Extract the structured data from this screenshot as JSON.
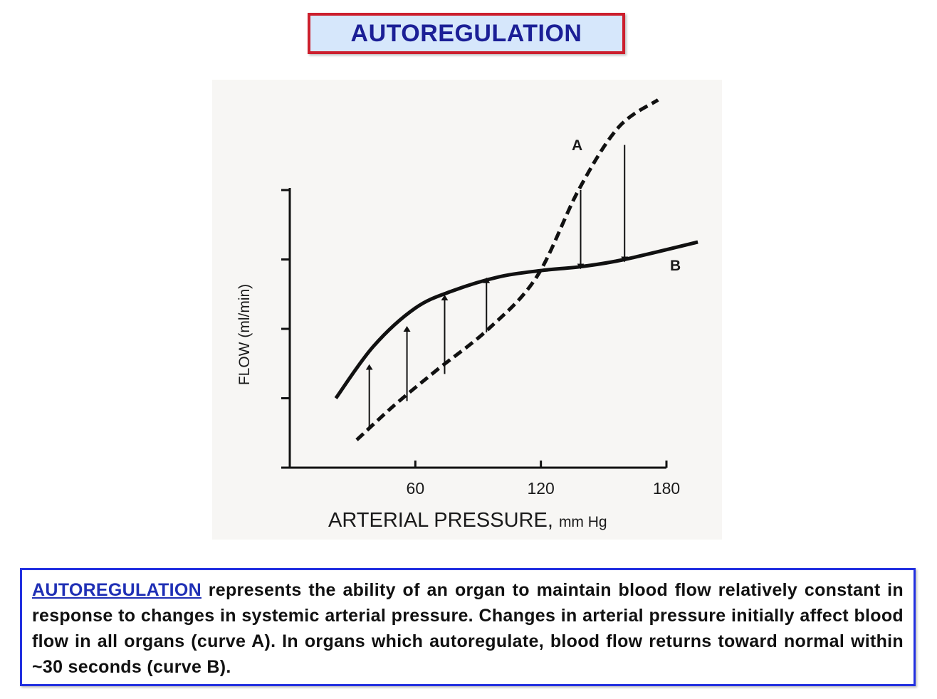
{
  "title": "AUTOREGULATION",
  "chart_data": {
    "type": "line",
    "xlabel_main": "ARTERIAL  PRESSURE,",
    "xlabel_unit": "mm Hg",
    "ylabel": "FLOW (ml/min)",
    "xlim": [
      0,
      180
    ],
    "x_ticks": [
      60,
      120,
      180
    ],
    "x_tick_labels": [
      "60",
      "120",
      "180"
    ],
    "y_tick_count": 4,
    "grid": false,
    "series": [
      {
        "name": "A",
        "style": "dashed",
        "x": [
          32,
          50,
          70,
          95,
          118,
          138,
          157,
          176
        ],
        "y": [
          0.4,
          0.9,
          1.4,
          2.0,
          2.75,
          4.0,
          4.9,
          5.3
        ]
      },
      {
        "name": "B",
        "style": "solid",
        "x": [
          22,
          40,
          60,
          78,
          100,
          120,
          140,
          160,
          195
        ],
        "y": [
          1.0,
          1.75,
          2.3,
          2.55,
          2.75,
          2.84,
          2.9,
          3.0,
          3.25
        ]
      }
    ],
    "arrows": [
      {
        "x": 38,
        "from": 0.55,
        "to": 1.45
      },
      {
        "x": 56,
        "from": 0.96,
        "to": 2.0
      },
      {
        "x": 74,
        "from": 1.35,
        "to": 2.45
      },
      {
        "x": 94,
        "from": 1.95,
        "to": 2.7
      },
      {
        "x": 139,
        "from": 4.0,
        "to": 2.9
      },
      {
        "x": 160,
        "from": 4.65,
        "to": 3.0
      }
    ]
  },
  "caption": {
    "term": "AUTOREGULATION",
    "text": " represents the ability of an organ to maintain blood flow relatively constant in response to changes in systemic arterial pressure. Changes in arterial pressure initially affect blood flow in all organs (curve A).  In organs which autoregulate, blood flow returns toward normal within ~30 seconds (curve B)."
  },
  "colors": {
    "title_border": "#cc1f2d",
    "title_fill": "#d6e7fb",
    "title_text": "#1b1f96",
    "caption_border": "#2230e0",
    "caption_term": "#1f2fb5"
  }
}
